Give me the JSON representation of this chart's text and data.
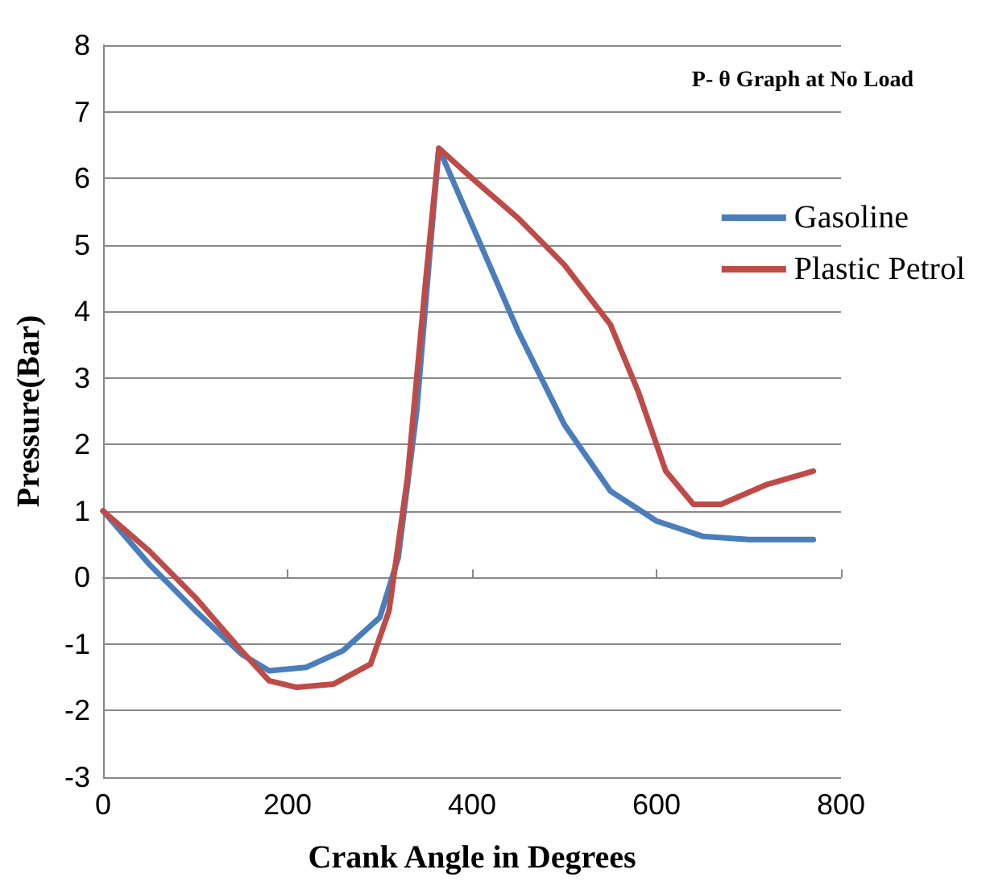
{
  "chart_data": {
    "type": "line",
    "title": "P- θ Graph at No Load",
    "xlabel": "Crank Angle in Degrees",
    "ylabel": "Pressure(Bar)",
    "xlim": [
      0,
      800
    ],
    "xticks": [
      0,
      200,
      400,
      600,
      800
    ],
    "ylim": [
      -3,
      8
    ],
    "yticks": [
      -3,
      -2,
      -1,
      0,
      1,
      2,
      3,
      4,
      5,
      6,
      7,
      8
    ],
    "grid": "y",
    "legend": "right",
    "marker": "none",
    "line_style": "solid",
    "series": [
      {
        "name": "Gasoline",
        "color": "#4a7ebb",
        "x": [
          0,
          50,
          100,
          150,
          180,
          220,
          260,
          300,
          320,
          340,
          355,
          364,
          400,
          450,
          500,
          550,
          600,
          650,
          700,
          770
        ],
        "values": [
          1,
          0.2,
          -0.5,
          -1.15,
          -1.4,
          -1.35,
          -1.1,
          -0.6,
          0.3,
          2.5,
          5,
          6.45,
          5.3,
          3.7,
          2.3,
          1.3,
          0.85,
          0.62,
          0.57,
          0.57
        ]
      },
      {
        "name": "Plastic Petrol",
        "color": "#be4b48",
        "x": [
          0,
          50,
          100,
          150,
          180,
          210,
          250,
          290,
          310,
          330,
          350,
          364,
          400,
          450,
          500,
          550,
          580,
          610,
          640,
          670,
          720,
          770
        ],
        "values": [
          1,
          0.4,
          -0.3,
          -1.1,
          -1.55,
          -1.65,
          -1.6,
          -1.3,
          -0.5,
          1.5,
          4.5,
          6.45,
          6,
          5.4,
          4.7,
          3.8,
          2.8,
          1.6,
          1.1,
          1.1,
          1.4,
          1.6
        ]
      }
    ]
  }
}
